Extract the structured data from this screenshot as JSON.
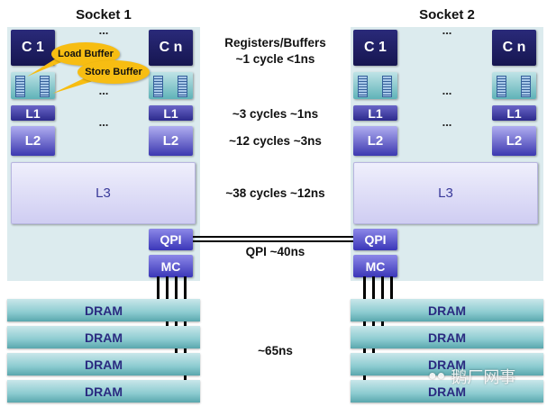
{
  "sockets": [
    {
      "title": "Socket 1",
      "core_first": "C 1",
      "core_last": "C n",
      "l1": "L1",
      "l2": "L2",
      "l3": "L3",
      "qpi": "QPI",
      "mc": "MC",
      "ellipsis": "..."
    },
    {
      "title": "Socket 2",
      "core_first": "C 1",
      "core_last": "C n",
      "l1": "L1",
      "l2": "L2",
      "l3": "L3",
      "qpi": "QPI",
      "mc": "MC",
      "ellipsis": "..."
    }
  ],
  "callouts": {
    "load": "Load Buffer",
    "store": "Store Buffer"
  },
  "latencies": {
    "registers_title": "Registers/Buffers",
    "registers": "~1 cycle <1ns",
    "l1": "~3 cycles ~1ns",
    "l2": "~12 cycles ~3ns",
    "l3": "~38 cycles ~12ns",
    "qpi": "QPI ~40ns",
    "dram": "~65ns"
  },
  "dram_label": "DRAM",
  "watermark": "鹅厂网事",
  "colors": {
    "core": "#1e1e66",
    "cache_l1": "#3a36a0",
    "cache_l2": "#6a66d8",
    "panel": "#dcebee",
    "dram": "#8ccbd0",
    "callout": "#f7bd12"
  }
}
